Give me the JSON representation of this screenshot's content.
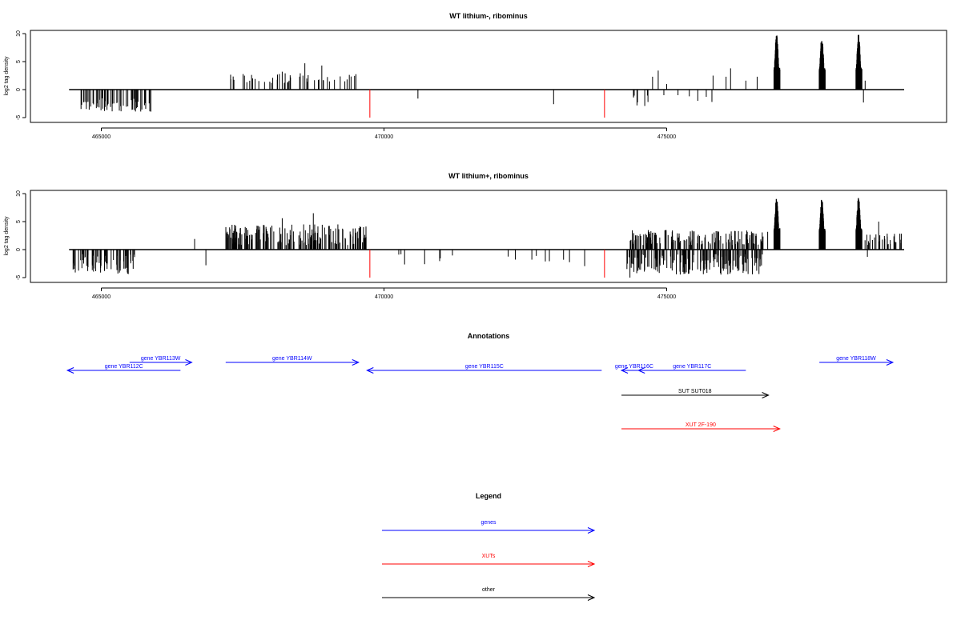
{
  "chart_data": [
    {
      "type": "bar",
      "title": "WT lithium-, ribominus",
      "ylabel": "log2 tag density",
      "xlabel": "",
      "xlim": [
        464400,
        479900
      ],
      "ylim": [
        -5,
        10
      ],
      "xticks": [
        465000,
        470000,
        475000
      ],
      "xtick_labels": [
        "465000",
        "470000",
        "475000"
      ],
      "yticks": [
        -5,
        0,
        5,
        10
      ],
      "ytick_labels": [
        "-5",
        "0",
        "5",
        "10"
      ],
      "baseline": {
        "from": 464430,
        "to": 479200
      },
      "markers": [
        {
          "x": 469750,
          "y": -5,
          "color": "#ff0000"
        },
        {
          "x": 473900,
          "y": -5,
          "color": "#ff0000"
        }
      ],
      "bar_color": "#000000",
      "clusters": [
        {
          "from": 464600,
          "to": 465900,
          "n": 60,
          "min": -4,
          "max": -1.5,
          "seed": 11
        },
        {
          "from": 467200,
          "to": 469600,
          "n": 48,
          "min": 1.2,
          "max": 3,
          "seed": 21
        },
        {
          "from": 474400,
          "to": 474700,
          "n": 8,
          "min": -3,
          "max": -1,
          "seed": 31
        },
        {
          "from": 476900,
          "to": 477000,
          "n": 34,
          "min": 2,
          "max": 9.8,
          "seed": 41,
          "dense": true
        },
        {
          "from": 477700,
          "to": 477800,
          "n": 34,
          "min": 2,
          "max": 9.3,
          "seed": 51,
          "dense": true
        },
        {
          "from": 478350,
          "to": 478450,
          "n": 34,
          "min": 2,
          "max": 9.9,
          "seed": 61,
          "dense": true
        }
      ],
      "bars": [
        {
          "x": 468600,
          "y": 4.7
        },
        {
          "x": 468900,
          "y": 4.3
        },
        {
          "x": 468200,
          "y": 3.2
        },
        {
          "x": 470600,
          "y": -1.6
        },
        {
          "x": 473000,
          "y": -2.6
        },
        {
          "x": 474750,
          "y": 2.3
        },
        {
          "x": 474850,
          "y": 3.4
        },
        {
          "x": 475000,
          "y": 1.0
        },
        {
          "x": 474950,
          "y": -1.0
        },
        {
          "x": 475200,
          "y": -1.0
        },
        {
          "x": 475400,
          "y": -1.2
        },
        {
          "x": 475550,
          "y": -2.0
        },
        {
          "x": 475700,
          "y": -1.3
        },
        {
          "x": 475800,
          "y": -2.2
        },
        {
          "x": 475820,
          "y": 2.5
        },
        {
          "x": 476050,
          "y": 2.3
        },
        {
          "x": 476130,
          "y": 3.8
        },
        {
          "x": 476400,
          "y": 1.6
        },
        {
          "x": 476600,
          "y": 2.3
        },
        {
          "x": 478480,
          "y": -2.3
        },
        {
          "x": 478510,
          "y": 1.6
        }
      ]
    },
    {
      "type": "bar",
      "title": "WT lithium+, ribominus",
      "ylabel": "log2 tag density",
      "xlabel": "",
      "xlim": [
        464400,
        479900
      ],
      "ylim": [
        -5,
        10
      ],
      "xticks": [
        465000,
        470000,
        475000
      ],
      "xtick_labels": [
        "465000",
        "470000",
        "475000"
      ],
      "yticks": [
        -5,
        0,
        5,
        10
      ],
      "ytick_labels": [
        "-5",
        "0",
        "5",
        "10"
      ],
      "baseline": {
        "from": 464430,
        "to": 479200
      },
      "markers": [
        {
          "x": 469750,
          "y": -5,
          "color": "#ff0000"
        },
        {
          "x": 473900,
          "y": -5,
          "color": "#ff0000"
        }
      ],
      "bar_color": "#000000",
      "clusters": [
        {
          "from": 464500,
          "to": 465600,
          "n": 70,
          "min": -4.5,
          "max": -0.8,
          "seed": 12
        },
        {
          "from": 467200,
          "to": 469700,
          "n": 180,
          "min": 0.8,
          "max": 4.5,
          "seed": 22
        },
        {
          "from": 469700,
          "to": 473800,
          "n": 16,
          "min": -3,
          "max": -0.8,
          "seed": 32
        },
        {
          "from": 474250,
          "to": 476700,
          "n": 170,
          "min": -4.5,
          "max": -0.8,
          "seed": 42
        },
        {
          "from": 474350,
          "to": 476800,
          "n": 160,
          "min": 0.8,
          "max": 3.5,
          "seed": 52
        },
        {
          "from": 476900,
          "to": 477000,
          "n": 34,
          "min": 2,
          "max": 9.3,
          "seed": 62,
          "dense": true
        },
        {
          "from": 477700,
          "to": 477800,
          "n": 34,
          "min": 2,
          "max": 9.2,
          "seed": 72,
          "dense": true
        },
        {
          "from": 478350,
          "to": 478450,
          "n": 34,
          "min": 2,
          "max": 9.4,
          "seed": 82,
          "dense": true
        },
        {
          "from": 478500,
          "to": 479150,
          "n": 30,
          "min": 0.8,
          "max": 3.0,
          "seed": 92
        }
      ],
      "bars": [
        {
          "x": 466650,
          "y": 1.9
        },
        {
          "x": 466850,
          "y": -2.8
        },
        {
          "x": 468750,
          "y": 6.5
        },
        {
          "x": 468200,
          "y": 5.6
        },
        {
          "x": 474350,
          "y": -5.0
        },
        {
          "x": 478550,
          "y": -1.3
        },
        {
          "x": 478750,
          "y": 5.0
        }
      ]
    }
  ],
  "annotations": {
    "title": "Annotations",
    "features": [
      {
        "label": "gene YBR112C",
        "from": 464400,
        "to": 466400,
        "dir": "reverse",
        "color": "#0000ff",
        "row": 1
      },
      {
        "label": "gene YBR113W",
        "from": 465500,
        "to": 466600,
        "dir": "forward",
        "color": "#0000ff",
        "row": 0
      },
      {
        "label": "gene YBR114W",
        "from": 467200,
        "to": 469550,
        "dir": "forward",
        "color": "#0000ff",
        "row": 0
      },
      {
        "label": "gene YBR115C",
        "from": 469700,
        "to": 473850,
        "dir": "reverse",
        "color": "#0000ff",
        "row": 1
      },
      {
        "label": "gene YBR116C",
        "from": 474200,
        "to": 474650,
        "dir": "reverse",
        "color": "#0000ff",
        "row": 1
      },
      {
        "label": "gene YBR117C",
        "from": 474500,
        "to": 476400,
        "dir": "reverse",
        "color": "#0000ff",
        "row": 1
      },
      {
        "label": "gene YBR118W",
        "from": 477700,
        "to": 479000,
        "dir": "forward",
        "color": "#0000ff",
        "row": 0
      },
      {
        "label": "SUT SUT018",
        "from": 474200,
        "to": 476800,
        "dir": "forward",
        "color": "#000000",
        "row": 2
      },
      {
        "label": "XUT 2F-190",
        "from": 474200,
        "to": 477000,
        "dir": "forward",
        "color": "#ff0000",
        "row": 3
      }
    ]
  },
  "legend": {
    "title": "Legend",
    "items": [
      {
        "label": "genes",
        "color": "#0000ff"
      },
      {
        "label": "XUTs",
        "color": "#ff0000"
      },
      {
        "label": "other",
        "color": "#000000"
      }
    ]
  }
}
